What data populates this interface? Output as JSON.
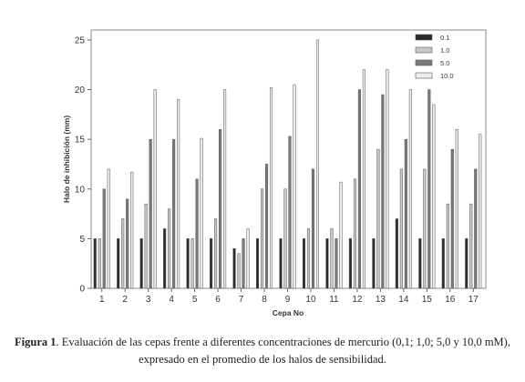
{
  "chart_data": {
    "type": "bar",
    "xlabel": "Cepa No",
    "ylabel": "Halo de inhibición (mm)",
    "ylim": [
      0,
      26
    ],
    "yticks": [
      "0",
      "5",
      "10",
      "15",
      "20",
      "25"
    ],
    "categories": [
      "1",
      "2",
      "3",
      "4",
      "5",
      "6",
      "7",
      "8",
      "9",
      "10",
      "11",
      "12",
      "13",
      "14",
      "15",
      "16",
      "17"
    ],
    "legend_position": "top-right",
    "series": [
      {
        "name": "0.1",
        "color": "#2a2a2a",
        "values": [
          5,
          5,
          5,
          6,
          5,
          5,
          4,
          5,
          5,
          5,
          5,
          5,
          5,
          7,
          5,
          5,
          5
        ]
      },
      {
        "name": "1.0",
        "color": "#c8c8c8",
        "values": [
          5,
          7,
          8.5,
          8,
          5,
          7,
          3.5,
          10,
          10,
          6,
          6,
          11,
          14,
          12,
          12,
          8.5,
          8.5
        ]
      },
      {
        "name": "5.0",
        "color": "#7a7a7a",
        "values": [
          10,
          9,
          15,
          15,
          11,
          16,
          5,
          12.5,
          15.3,
          12,
          5,
          20,
          19.5,
          15,
          20,
          14,
          12
        ]
      },
      {
        "name": "10.0",
        "color": "#ececec",
        "values": [
          12,
          11.7,
          20,
          19,
          15.1,
          20,
          6,
          20.2,
          20.5,
          25,
          10.7,
          22,
          22,
          20,
          18.5,
          16,
          15.5
        ]
      }
    ]
  },
  "caption": {
    "label": "Figura 1",
    "text": ". Evaluación de las cepas frente a diferentes concentraciones de mercurio (0,1; 1,0; 5,0 y 10,0 mM),",
    "line2": "expresado en el promedio de los halos de sensibilidad."
  }
}
